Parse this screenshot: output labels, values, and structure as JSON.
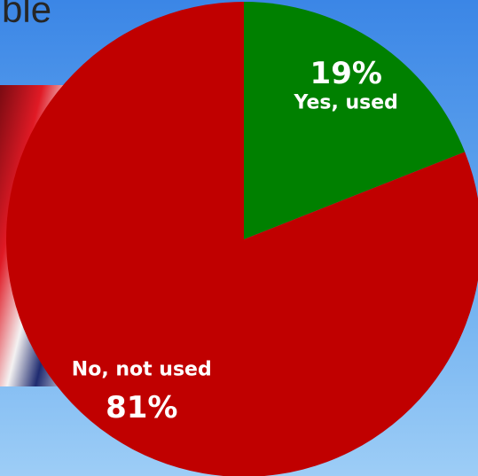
{
  "chart_data": {
    "type": "pie",
    "title": "ble",
    "categories": [
      "Yes, used",
      "No, not used"
    ],
    "values": [
      19,
      81
    ],
    "value_labels": [
      "19%",
      "81%"
    ],
    "colors": [
      "#008000",
      "#c00000"
    ]
  }
}
